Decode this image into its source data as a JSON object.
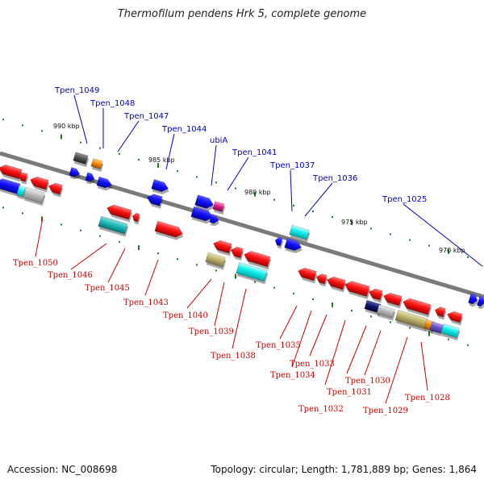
{
  "title": "Thermofilum pendens Hrk 5, complete genome",
  "footer": {
    "accession": "Accession: NC_008698",
    "topology": "Topology: circular; Length: 1,781,889 bp; Genes: 1,864"
  },
  "colors": {
    "forward_label": "#0000bb",
    "reverse_label": "#cc0000",
    "backbone": "#7a7a7a",
    "tick": "#1f7a1f"
  },
  "scale_labels": [
    "990 kbp",
    "985 kbp",
    "980 kbp",
    "975 kbp",
    "970 kbp"
  ],
  "forward_genes": [
    "Tpen_1049",
    "Tpen_1048",
    "Tpen_1047",
    "Tpen_1044",
    "ubiA",
    "Tpen_1041",
    "Tpen_1037",
    "Tpen_1036",
    "Tpen_1025"
  ],
  "reverse_genes": [
    "Tpen_1050",
    "Tpen_1046",
    "Tpen_1045",
    "Tpen_1043",
    "Tpen_1040",
    "Tpen_1039",
    "Tpen_1038",
    "Tpen_1035",
    "Tpen_1034",
    "Tpen_1033",
    "Tpen_1032",
    "Tpen_1031",
    "Tpen_1030",
    "Tpen_1029",
    "Tpen_1028"
  ]
}
